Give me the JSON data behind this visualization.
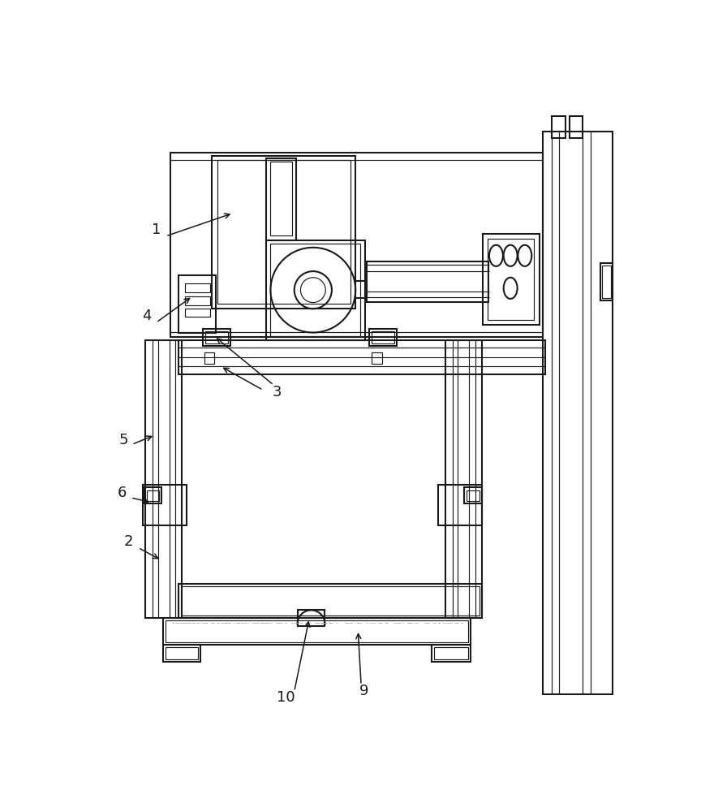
{
  "bg_color": "#ffffff",
  "lc": "#1a1a1a",
  "lw": 1.5,
  "tlw": 0.85,
  "fs": 13
}
